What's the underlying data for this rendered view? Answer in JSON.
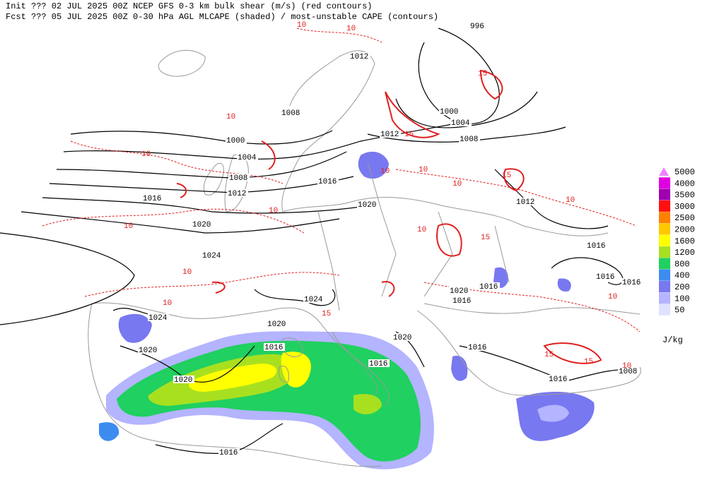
{
  "header": {
    "line1": "Init  ??? 02 JUL 2025 00Z  NCEP GFS 0-3 km bulk shear (m/s) (red contours)",
    "line2": "Fcst ??? 05 JUL 2025 00Z  0-30 hPa AGL MLCAPE (shaded) / most-unstable CAPE (contours)"
  },
  "legend": {
    "unit": "J/kg",
    "levels": [
      {
        "value": 5000,
        "color": "#f080ff"
      },
      {
        "value": 4000,
        "color": "#e000e0"
      },
      {
        "value": 3500,
        "color": "#a000b0"
      },
      {
        "value": 3000,
        "color": "#ff1010"
      },
      {
        "value": 2500,
        "color": "#ff8000"
      },
      {
        "value": 2000,
        "color": "#ffc800"
      },
      {
        "value": 1600,
        "color": "#ffff00"
      },
      {
        "value": 1200,
        "color": "#a8e020"
      },
      {
        "value": 800,
        "color": "#20d060"
      },
      {
        "value": 400,
        "color": "#3c8cf0"
      },
      {
        "value": 200,
        "color": "#7878f0"
      },
      {
        "value": 100,
        "color": "#b4b4ff"
      },
      {
        "value": 50,
        "color": "#e0e0ff"
      }
    ]
  },
  "isobar_labels": [
    996,
    1012,
    1008,
    1000,
    1004,
    1012,
    1008,
    1000,
    1004,
    1008,
    1012,
    1016,
    1016,
    1020,
    1012,
    1020,
    1016,
    1024,
    1016,
    1016,
    1016,
    1020,
    1016,
    1024,
    1024,
    1020,
    1020,
    1016,
    1016,
    1020,
    1016,
    1008,
    1020,
    1016,
    1016
  ],
  "shear_labels": [
    10,
    10,
    10,
    10,
    10,
    10,
    10,
    10,
    10,
    10,
    10,
    10,
    10,
    10,
    10,
    15,
    15,
    15,
    15,
    15,
    15,
    15
  ]
}
